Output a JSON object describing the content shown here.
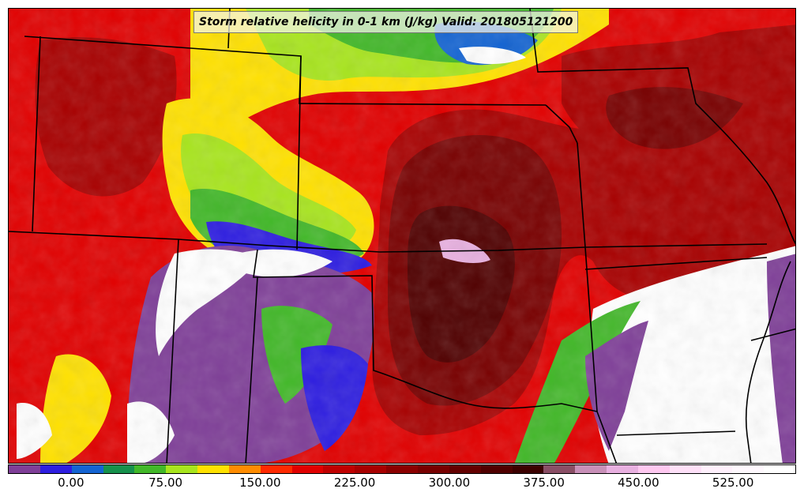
{
  "title": "Storm relative helicity in 0-1 km (J/kg) Valid: 201805121200",
  "colorbar": {
    "min": -50,
    "max": 575,
    "step": 25,
    "colors": [
      "#7f3f98",
      "#2e1ee0",
      "#1464d2",
      "#16914c",
      "#42b829",
      "#a8e51e",
      "#ffe100",
      "#ff8c00",
      "#ff2a00",
      "#e10000",
      "#c00000",
      "#a80000",
      "#8c0000",
      "#780000",
      "#640000",
      "#500000",
      "#3c0000",
      "#8a4f66",
      "#c890b8",
      "#e8b0e0",
      "#ffc8f0",
      "#ffe0f8",
      "#fff0fc",
      "#fff8fe",
      "#ffffff"
    ],
    "tick_labels": [
      "0.00",
      "75.00",
      "150.00",
      "225.00",
      "300.00",
      "375.00",
      "450.00",
      "525.00"
    ],
    "tick_values": [
      0,
      75,
      150,
      225,
      300,
      375,
      450,
      525
    ]
  }
}
